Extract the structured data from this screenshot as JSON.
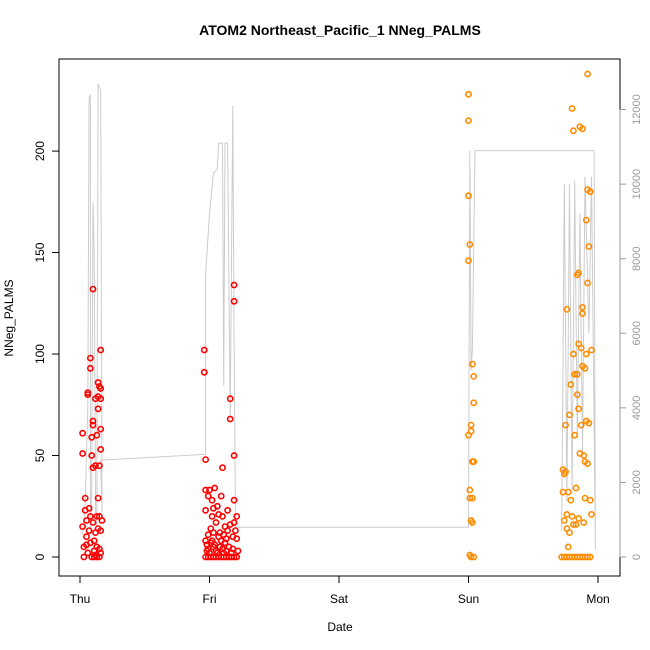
{
  "chart_data": {
    "type": "scatter",
    "title": "ATOM2 Northeast_Pacific_1 NNeg_PALMS",
    "xlabel": "Date",
    "ylabel": "NNeg_PALMS",
    "x_ticks": [
      "Thu",
      "Fri",
      "Sat",
      "Sun",
      "Mon"
    ],
    "xlim": [
      0,
      4
    ],
    "ylim": [
      0,
      237
    ],
    "y_ticks": [
      0,
      50,
      100,
      150,
      200
    ],
    "y2_ticks": [
      0,
      2000,
      4000,
      6000,
      8000,
      10000,
      12000
    ],
    "y2lim": [
      0,
      12900
    ],
    "grid": false,
    "colors": {
      "early": "#ff0000",
      "late": "#ff8c00",
      "line": "#cccccc"
    },
    "series": [
      {
        "color": "#ff0000",
        "points": [
          [
            0.02,
            61
          ],
          [
            0.02,
            51
          ],
          [
            0.02,
            15
          ],
          [
            0.03,
            5
          ],
          [
            0.03,
            0
          ],
          [
            0.04,
            29
          ],
          [
            0.04,
            23
          ],
          [
            0.05,
            18
          ],
          [
            0.05,
            10
          ],
          [
            0.05,
            6
          ],
          [
            0.06,
            80
          ],
          [
            0.06,
            81
          ],
          [
            0.06,
            2
          ],
          [
            0.07,
            24
          ],
          [
            0.07,
            13
          ],
          [
            0.08,
            98
          ],
          [
            0.08,
            93
          ],
          [
            0.08,
            20
          ],
          [
            0.08,
            7
          ],
          [
            0.09,
            59
          ],
          [
            0.09,
            50
          ],
          [
            0.1,
            132
          ],
          [
            0.1,
            67
          ],
          [
            0.1,
            65
          ],
          [
            0.1,
            44
          ],
          [
            0.1,
            17
          ],
          [
            0.11,
            8
          ],
          [
            0.11,
            3
          ],
          [
            0.12,
            78
          ],
          [
            0.12,
            45
          ],
          [
            0.12,
            12
          ],
          [
            0.12,
            1
          ],
          [
            0.13,
            60
          ],
          [
            0.13,
            20
          ],
          [
            0.13,
            5
          ],
          [
            0.14,
            86
          ],
          [
            0.14,
            79
          ],
          [
            0.14,
            73
          ],
          [
            0.14,
            29
          ],
          [
            0.14,
            14
          ],
          [
            0.15,
            84
          ],
          [
            0.15,
            45
          ],
          [
            0.15,
            20
          ],
          [
            0.15,
            4
          ],
          [
            0.16,
            102
          ],
          [
            0.16,
            83
          ],
          [
            0.16,
            78
          ],
          [
            0.16,
            63
          ],
          [
            0.16,
            53
          ],
          [
            0.16,
            13
          ],
          [
            0.16,
            2
          ],
          [
            0.17,
            18
          ],
          [
            0.09,
            0
          ],
          [
            0.11,
            0
          ],
          [
            0.13,
            0
          ],
          [
            0.15,
            0
          ],
          [
            0.96,
            102
          ],
          [
            0.96,
            91
          ],
          [
            0.97,
            48
          ],
          [
            0.97,
            33
          ],
          [
            0.97,
            23
          ],
          [
            0.97,
            8
          ],
          [
            0.98,
            6
          ],
          [
            0.98,
            3
          ],
          [
            0.99,
            30
          ],
          [
            0.99,
            11
          ],
          [
            0.99,
            4
          ],
          [
            1.0,
            33
          ],
          [
            1.0,
            2
          ],
          [
            1.01,
            14
          ],
          [
            1.01,
            7
          ],
          [
            1.02,
            28
          ],
          [
            1.02,
            20
          ],
          [
            1.02,
            8
          ],
          [
            1.03,
            24
          ],
          [
            1.03,
            12
          ],
          [
            1.03,
            5
          ],
          [
            1.04,
            34
          ],
          [
            1.04,
            6
          ],
          [
            1.05,
            17
          ],
          [
            1.05,
            3
          ],
          [
            1.06,
            25
          ],
          [
            1.06,
            2
          ],
          [
            1.07,
            21
          ],
          [
            1.07,
            10
          ],
          [
            1.08,
            12
          ],
          [
            1.08,
            5
          ],
          [
            1.09,
            30
          ],
          [
            1.09,
            8
          ],
          [
            1.1,
            44
          ],
          [
            1.1,
            20
          ],
          [
            1.1,
            4
          ],
          [
            1.11,
            11
          ],
          [
            1.11,
            2
          ],
          [
            1.12,
            15
          ],
          [
            1.12,
            7
          ],
          [
            1.13,
            9
          ],
          [
            1.13,
            3
          ],
          [
            1.14,
            23
          ],
          [
            1.14,
            13
          ],
          [
            1.15,
            5
          ],
          [
            1.16,
            78
          ],
          [
            1.16,
            68
          ],
          [
            1.16,
            16
          ],
          [
            1.17,
            2
          ],
          [
            1.18,
            10
          ],
          [
            1.18,
            4
          ],
          [
            1.19,
            134
          ],
          [
            1.19,
            126
          ],
          [
            1.19,
            50
          ],
          [
            1.19,
            28
          ],
          [
            1.19,
            17
          ],
          [
            1.2,
            13
          ],
          [
            1.21,
            20
          ],
          [
            1.21,
            9
          ],
          [
            1.22,
            3
          ],
          [
            0.97,
            0
          ],
          [
            0.99,
            0
          ],
          [
            1.01,
            0
          ],
          [
            1.03,
            0
          ],
          [
            1.05,
            0
          ],
          [
            1.07,
            0
          ],
          [
            1.09,
            0
          ],
          [
            1.11,
            0
          ],
          [
            1.13,
            0
          ],
          [
            1.15,
            0
          ],
          [
            1.17,
            0
          ],
          [
            1.19,
            0
          ],
          [
            1.21,
            0
          ]
        ]
      },
      {
        "color": "#ff8c00",
        "points": [
          [
            3.0,
            228
          ],
          [
            3.0,
            215
          ],
          [
            3.0,
            178
          ],
          [
            3.01,
            154
          ],
          [
            3.0,
            146
          ],
          [
            3.0,
            60
          ],
          [
            3.01,
            33
          ],
          [
            3.01,
            29
          ],
          [
            3.02,
            18
          ],
          [
            3.01,
            1
          ],
          [
            3.02,
            62
          ],
          [
            3.02,
            65
          ],
          [
            3.03,
            17
          ],
          [
            3.03,
            95
          ],
          [
            3.03,
            47
          ],
          [
            3.03,
            29
          ],
          [
            3.04,
            89
          ],
          [
            3.04,
            76
          ],
          [
            3.04,
            47
          ],
          [
            3.02,
            0
          ],
          [
            3.04,
            0
          ],
          [
            3.73,
            43
          ],
          [
            3.73,
            32
          ],
          [
            3.74,
            41
          ],
          [
            3.74,
            18
          ],
          [
            3.75,
            65
          ],
          [
            3.75,
            42
          ],
          [
            3.76,
            122
          ],
          [
            3.76,
            21
          ],
          [
            3.76,
            14
          ],
          [
            3.77,
            32
          ],
          [
            3.77,
            5
          ],
          [
            3.78,
            70
          ],
          [
            3.78,
            12
          ],
          [
            3.79,
            85
          ],
          [
            3.79,
            28
          ],
          [
            3.8,
            221
          ],
          [
            3.8,
            20
          ],
          [
            3.81,
            210
          ],
          [
            3.81,
            100
          ],
          [
            3.81,
            16
          ],
          [
            3.82,
            90
          ],
          [
            3.82,
            60
          ],
          [
            3.83,
            34
          ],
          [
            3.83,
            16
          ],
          [
            3.84,
            139
          ],
          [
            3.84,
            90
          ],
          [
            3.84,
            80
          ],
          [
            3.85,
            140
          ],
          [
            3.85,
            105
          ],
          [
            3.85,
            73
          ],
          [
            3.85,
            19
          ],
          [
            3.86,
            212
          ],
          [
            3.86,
            51
          ],
          [
            3.87,
            103
          ],
          [
            3.87,
            65
          ],
          [
            3.88,
            211
          ],
          [
            3.88,
            123
          ],
          [
            3.88,
            120
          ],
          [
            3.88,
            94
          ],
          [
            3.89,
            50
          ],
          [
            3.89,
            17
          ],
          [
            3.9,
            93
          ],
          [
            3.9,
            47
          ],
          [
            3.9,
            29
          ],
          [
            3.91,
            166
          ],
          [
            3.91,
            100
          ],
          [
            3.91,
            67
          ],
          [
            3.92,
            238
          ],
          [
            3.92,
            181
          ],
          [
            3.92,
            135
          ],
          [
            3.92,
            46
          ],
          [
            3.93,
            153
          ],
          [
            3.93,
            66
          ],
          [
            3.94,
            180
          ],
          [
            3.94,
            28
          ],
          [
            3.95,
            102
          ],
          [
            3.95,
            21
          ],
          [
            3.72,
            0
          ],
          [
            3.74,
            0
          ],
          [
            3.76,
            0
          ],
          [
            3.78,
            0
          ],
          [
            3.8,
            0
          ],
          [
            3.82,
            0
          ],
          [
            3.84,
            0
          ],
          [
            3.86,
            0
          ],
          [
            3.88,
            0
          ],
          [
            3.9,
            0
          ],
          [
            3.92,
            0
          ],
          [
            3.94,
            0
          ]
        ]
      }
    ],
    "right_axis_line": [
      [
        0.02,
        600
      ],
      [
        0.03,
        950
      ],
      [
        0.04,
        1500
      ],
      [
        0.06,
        4000
      ],
      [
        0.07,
        12300
      ],
      [
        0.08,
        12400
      ],
      [
        0.08,
        700
      ],
      [
        0.09,
        1700
      ],
      [
        0.1,
        9500
      ],
      [
        0.11,
        8200
      ],
      [
        0.12,
        1300
      ],
      [
        0.13,
        800
      ],
      [
        0.14,
        12700
      ],
      [
        0.16,
        12500
      ],
      [
        0.17,
        1200
      ],
      [
        0.16,
        2600
      ],
      [
        0.95,
        2750
      ],
      [
        0.97,
        2750
      ],
      [
        0.97,
        7600
      ],
      [
        1.0,
        9200
      ],
      [
        1.03,
        10300
      ],
      [
        1.06,
        10400
      ],
      [
        1.07,
        11100
      ],
      [
        1.1,
        11100
      ],
      [
        1.11,
        4600
      ],
      [
        1.12,
        11100
      ],
      [
        1.14,
        11100
      ],
      [
        1.16,
        3700
      ],
      [
        1.18,
        12100
      ],
      [
        1.19,
        5800
      ],
      [
        1.2,
        1200
      ],
      [
        1.2,
        800
      ],
      [
        3.0,
        800
      ],
      [
        3.01,
        10900
      ],
      [
        3.02,
        5000
      ],
      [
        3.03,
        5600
      ],
      [
        3.05,
        10900
      ],
      [
        3.97,
        10900
      ],
      [
        3.98,
        200
      ],
      [
        3.95,
        10200
      ],
      [
        3.93,
        6000
      ],
      [
        3.9,
        10200
      ],
      [
        3.88,
        2800
      ],
      [
        3.86,
        9200
      ],
      [
        3.84,
        3200
      ],
      [
        3.82,
        10100
      ],
      [
        3.8,
        1800
      ],
      [
        3.78,
        10000
      ],
      [
        3.76,
        1500
      ],
      [
        3.74,
        10000
      ],
      [
        3.72,
        700
      ]
    ]
  }
}
